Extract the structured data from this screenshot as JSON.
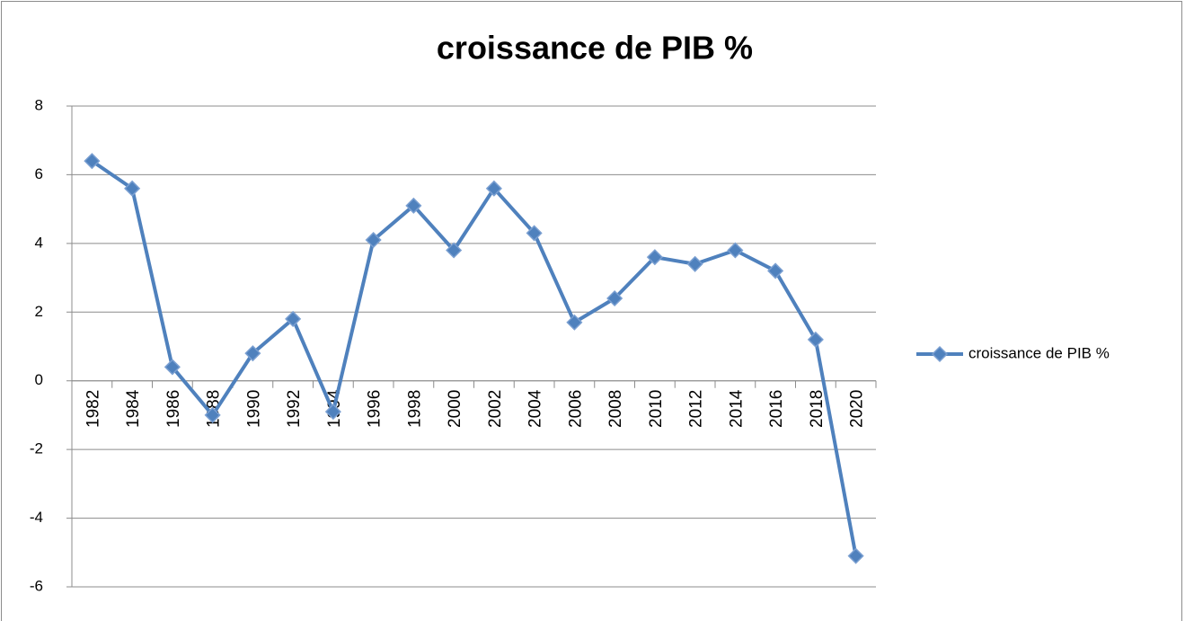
{
  "chart_data": {
    "type": "line",
    "title": "croissance de PIB %",
    "categories": [
      "1982",
      "1984",
      "1986",
      "1988",
      "1990",
      "1992",
      "1994",
      "1996",
      "1998",
      "2000",
      "2002",
      "2004",
      "2006",
      "2008",
      "2010",
      "2012",
      "2014",
      "2016",
      "2018",
      "2020"
    ],
    "series": [
      {
        "name": "croissance de PIB %",
        "color": "#4f81bd",
        "values": [
          6.4,
          5.6,
          0.4,
          -1.0,
          0.8,
          1.8,
          -0.9,
          4.1,
          5.1,
          3.8,
          5.6,
          4.3,
          1.7,
          2.4,
          3.6,
          3.4,
          3.8,
          3.2,
          1.2,
          -5.1
        ]
      }
    ],
    "ylim": [
      -6,
      8
    ],
    "yticks": [
      -6,
      -4,
      -2,
      0,
      2,
      4,
      6,
      8
    ],
    "grid": true,
    "legend": "right"
  }
}
